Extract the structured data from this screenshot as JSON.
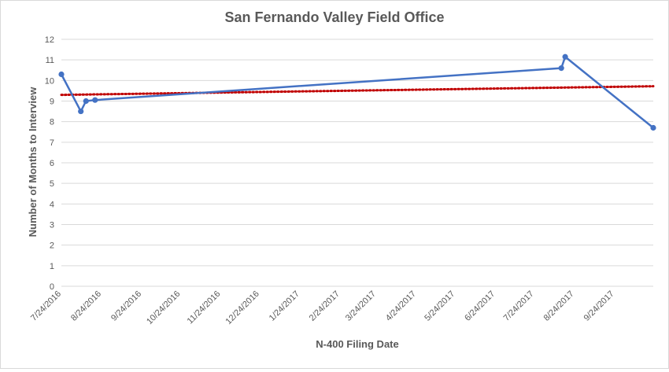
{
  "chart_data": {
    "type": "line",
    "title": "San Fernando Valley Field Office",
    "xlabel": "N-400 Filing Date",
    "ylabel": "Number of Months to Interview",
    "ylim": [
      0,
      12
    ],
    "y_ticks": [
      "0",
      "1",
      "2",
      "3",
      "4",
      "5",
      "6",
      "7",
      "8",
      "9",
      "10",
      "11",
      "12"
    ],
    "xlim": [
      "2016-07-24",
      "2017-10-24"
    ],
    "x_ticks": [
      {
        "date": "2016-07-24",
        "label": "7/24/2016"
      },
      {
        "date": "2016-08-24",
        "label": "8/24/2016"
      },
      {
        "date": "2016-09-24",
        "label": "9/24/2016"
      },
      {
        "date": "2016-10-24",
        "label": "10/24/2016"
      },
      {
        "date": "2016-11-24",
        "label": "11/24/2016"
      },
      {
        "date": "2016-12-24",
        "label": "12/24/2016"
      },
      {
        "date": "2017-01-24",
        "label": "1/24/2017"
      },
      {
        "date": "2017-02-24",
        "label": "2/24/2017"
      },
      {
        "date": "2017-03-24",
        "label": "3/24/2017"
      },
      {
        "date": "2017-04-24",
        "label": "4/24/2017"
      },
      {
        "date": "2017-05-24",
        "label": "5/24/2017"
      },
      {
        "date": "2017-06-24",
        "label": "6/24/2017"
      },
      {
        "date": "2017-07-24",
        "label": "7/24/2017"
      },
      {
        "date": "2017-08-24",
        "label": "8/24/2017"
      },
      {
        "date": "2017-09-24",
        "label": "9/24/2017"
      }
    ],
    "grid": true,
    "legend": "none",
    "series": [
      {
        "color": "#4472c4",
        "points": [
          {
            "x": "2016-07-24",
            "y": 10.3
          },
          {
            "x": "2016-08-08",
            "y": 8.5
          },
          {
            "x": "2016-08-12",
            "y": 9.0
          },
          {
            "x": "2016-08-19",
            "y": 9.05
          },
          {
            "x": "2017-08-14",
            "y": 10.6
          },
          {
            "x": "2017-08-17",
            "y": 11.15
          },
          {
            "x": "2017-10-24",
            "y": 7.7
          }
        ]
      }
    ],
    "trendline": {
      "style": "dotted",
      "color": "#c00000",
      "points": [
        {
          "x": "2016-07-24",
          "y": 9.3
        },
        {
          "x": "2017-10-24",
          "y": 9.72
        }
      ]
    }
  }
}
